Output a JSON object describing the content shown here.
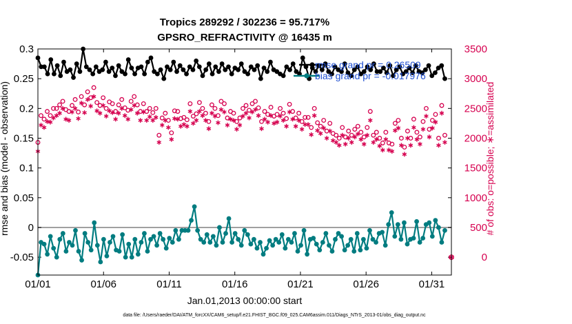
{
  "chart_data": {
    "type": "line",
    "title_line1": "Tropics 289292 / 302236 = 95.717%",
    "title_line2": "GPSRO_REFRACTIVITY @ 16435 m",
    "xlabel": "Jan.01,2013 00:00:00 start",
    "ylabel": "rmse and bias (model - observation)",
    "y2label": "# of obs: o=possible; ∗=assimilated",
    "footnote": "data file: /Users/raeder/DAI/ATM_forcXX/CAM6_setup/f.e21.FHIST_BGC.f09_025.CAM6assim.011/Diags_NTrS_2013-01/obs_diag_output.nc",
    "xlim": [
      0,
      31.5
    ],
    "ylim": [
      -0.08,
      0.3
    ],
    "y2lim": [
      -300,
      3500
    ],
    "xticks": [
      0,
      5,
      10,
      15,
      20,
      25,
      30
    ],
    "xtick_labels": [
      "01/01",
      "01/06",
      "01/11",
      "01/16",
      "01/21",
      "01/26",
      "01/31"
    ],
    "yticks": [
      -0.05,
      0,
      0.05,
      0.1,
      0.15,
      0.2,
      0.25,
      0.3
    ],
    "ytick_labels": [
      "-0.05",
      "0",
      "0.05",
      "0.1",
      "0.15",
      "0.2",
      "0.25",
      "0.3"
    ],
    "y2ticks": [
      0,
      500,
      1000,
      1500,
      2000,
      2500,
      3000,
      3500
    ],
    "y2tick_labels": [
      "0",
      "500",
      "1000",
      "1500",
      "2000",
      "2500",
      "3000",
      "3500"
    ],
    "legend": [
      {
        "name": "rmse grand pr = 0.26509",
        "color": "#000000"
      },
      {
        "name": "bias grand pr = -0.017976",
        "color": "#007c80"
      }
    ],
    "colors": {
      "rmse": "#000000",
      "bias": "#007c80",
      "obs": "#d6004f",
      "zero_line": "#a0a0a0",
      "legend_text": "#1f4fd0"
    },
    "series": [
      {
        "name": "rmse",
        "axis": "left",
        "marker": "dot",
        "values": [
          0.285,
          0.27,
          0.27,
          0.258,
          0.282,
          0.258,
          0.272,
          0.255,
          0.278,
          0.262,
          0.265,
          0.252,
          0.275,
          0.262,
          0.3,
          0.27,
          0.265,
          0.258,
          0.27,
          0.262,
          0.265,
          0.278,
          0.262,
          0.268,
          0.255,
          0.272,
          0.262,
          0.258,
          0.282,
          0.268,
          0.258,
          0.268,
          0.27,
          0.258,
          0.278,
          0.285,
          0.262,
          0.258,
          0.265,
          0.25,
          0.27,
          0.265,
          0.278,
          0.262,
          0.272,
          0.265,
          0.258,
          0.27,
          0.265,
          0.28,
          0.27,
          0.255,
          0.265,
          0.275,
          0.258,
          0.27,
          0.262,
          0.275,
          0.265,
          0.27,
          0.258,
          0.268,
          0.265,
          0.275,
          0.262,
          0.258,
          0.27,
          0.265,
          0.272,
          0.25,
          0.268,
          0.262,
          0.278,
          0.265,
          0.262,
          0.258,
          0.255,
          0.27,
          0.265,
          0.275,
          0.262,
          0.258,
          0.285,
          0.27,
          0.25,
          0.268,
          0.262,
          0.272,
          0.265,
          0.275,
          0.262,
          0.258,
          0.27,
          0.265,
          0.262,
          0.275,
          0.26,
          0.255,
          0.265,
          0.27,
          0.258,
          0.262,
          0.27,
          0.265,
          0.275,
          0.262,
          0.262,
          0.268,
          0.26,
          0.272,
          0.255,
          0.265,
          0.27,
          0.258,
          0.262,
          0.268,
          0.26,
          0.272,
          0.262,
          0.26,
          0.265,
          0.272,
          0.255,
          0.26,
          0.268,
          0.272,
          0.25
        ]
      },
      {
        "name": "bias",
        "axis": "left",
        "marker": "dot",
        "values": [
          -0.08,
          -0.025,
          -0.028,
          -0.045,
          -0.015,
          -0.035,
          -0.05,
          -0.02,
          -0.01,
          -0.04,
          -0.025,
          -0.03,
          -0.005,
          -0.04,
          -0.055,
          -0.01,
          -0.025,
          -0.038,
          0.008,
          -0.03,
          -0.058,
          -0.02,
          -0.048,
          -0.025,
          -0.015,
          -0.038,
          -0.04,
          -0.012,
          -0.05,
          -0.028,
          -0.05,
          -0.02,
          -0.045,
          -0.025,
          -0.01,
          -0.04,
          -0.02,
          -0.015,
          -0.03,
          -0.01,
          -0.02,
          -0.035,
          -0.018,
          -0.025,
          -0.005,
          -0.02,
          -0.005,
          -0.005,
          -0.005,
          0.012,
          0.035,
          -0.005,
          -0.02,
          -0.025,
          -0.012,
          -0.025,
          -0.015,
          -0.03,
          0.0,
          -0.025,
          -0.01,
          0.015,
          -0.025,
          -0.01,
          -0.02,
          -0.03,
          -0.005,
          -0.012,
          -0.028,
          -0.02,
          -0.035,
          -0.025,
          -0.045,
          -0.035,
          -0.022,
          -0.03,
          -0.02,
          -0.025,
          -0.012,
          -0.035,
          -0.02,
          -0.025,
          -0.01,
          -0.04,
          -0.03,
          -0.005,
          -0.045,
          -0.02,
          -0.018,
          -0.028,
          -0.038,
          -0.025,
          -0.01,
          -0.03,
          -0.04,
          -0.02,
          -0.01,
          -0.015,
          -0.038,
          -0.03,
          -0.02,
          -0.04,
          -0.01,
          -0.038,
          -0.02,
          -0.035,
          -0.005,
          -0.02,
          -0.025,
          -0.01,
          -0.008,
          -0.03,
          0.005,
          0.025,
          -0.015,
          0.005,
          -0.02,
          0.008,
          -0.028,
          -0.02,
          -0.018,
          0.01,
          -0.025,
          -0.018,
          0.005,
          0.008,
          -0.015,
          0.012,
          0.0,
          -0.025,
          -0.005
        ]
      },
      {
        "name": "possible",
        "axis": "right",
        "marker": "circle",
        "values": [
          1930,
          2380,
          2320,
          2450,
          2380,
          2500,
          2500,
          2560,
          2620,
          2480,
          2450,
          2550,
          2650,
          2440,
          2700,
          2560,
          2780,
          2680,
          2850,
          2600,
          2550,
          2680,
          2500,
          2610,
          2580,
          2450,
          2560,
          2650,
          2510,
          2470,
          2620,
          2700,
          2560,
          2450,
          2580,
          2450,
          2500,
          2430,
          2500,
          2050,
          2340,
          2420,
          2300,
          2090,
          2460,
          2450,
          2330,
          2350,
          2310,
          2580,
          2370,
          2410,
          2600,
          2500,
          2420,
          2280,
          2560,
          2500,
          2380,
          2620,
          2580,
          2340,
          2450,
          2420,
          2280,
          2340,
          2500,
          2550,
          2470,
          2580,
          2620,
          2510,
          2280,
          2450,
          2400,
          2520,
          2370,
          2400,
          2500,
          2420,
          2330,
          2570,
          2450,
          2340,
          2420,
          2280,
          2350,
          2350,
          2180,
          2500,
          2260,
          2200,
          2300,
          2120,
          2250,
          2080,
          2050,
          2000,
          2180,
          2020,
          2120,
          2050,
          2150,
          2200,
          2100,
          2020,
          2180,
          2450,
          2050,
          2100,
          2000,
          1920,
          2100,
          1920,
          1900,
          2250,
          2300,
          2000,
          1850,
          2120,
          2000,
          2320,
          2100,
          2020,
          2280,
          2500,
          2150,
          2300,
          2400,
          2000,
          2550,
          2050
        ]
      },
      {
        "name": "assimilated",
        "axis": "right",
        "marker": "star",
        "values": [
          1780,
          2220,
          2180,
          2280,
          2270,
          2340,
          2380,
          2420,
          2500,
          2320,
          2300,
          2440,
          2500,
          2330,
          2590,
          2430,
          2650,
          2540,
          2700,
          2460,
          2420,
          2550,
          2370,
          2460,
          2430,
          2320,
          2420,
          2500,
          2380,
          2320,
          2480,
          2550,
          2420,
          2300,
          2440,
          2300,
          2360,
          2300,
          2350,
          1930,
          2220,
          2300,
          2180,
          1980,
          2330,
          2320,
          2200,
          2230,
          2200,
          2450,
          2250,
          2300,
          2450,
          2380,
          2300,
          2160,
          2420,
          2370,
          2260,
          2480,
          2440,
          2220,
          2320,
          2300,
          2150,
          2220,
          2370,
          2420,
          2340,
          2440,
          2480,
          2380,
          2160,
          2320,
          2270,
          2380,
          2250,
          2270,
          2370,
          2300,
          2200,
          2440,
          2320,
          2200,
          2300,
          2150,
          2230,
          2230,
          2060,
          2380,
          2130,
          2080,
          2170,
          2000,
          2120,
          1960,
          1930,
          1880,
          2050,
          1900,
          2000,
          1930,
          2020,
          2070,
          1980,
          1900,
          2050,
          2300,
          1930,
          1980,
          1870,
          1800,
          1980,
          1800,
          1780,
          2130,
          2170,
          1880,
          1730,
          2000,
          1880,
          2180,
          1980,
          1900,
          2150,
          2370,
          2020,
          2170,
          2270,
          1880,
          2420,
          1930
        ]
      }
    ],
    "extra_points": [
      {
        "name": "obs-count-edge-marker",
        "x": 31.5,
        "y2": 0
      }
    ]
  }
}
